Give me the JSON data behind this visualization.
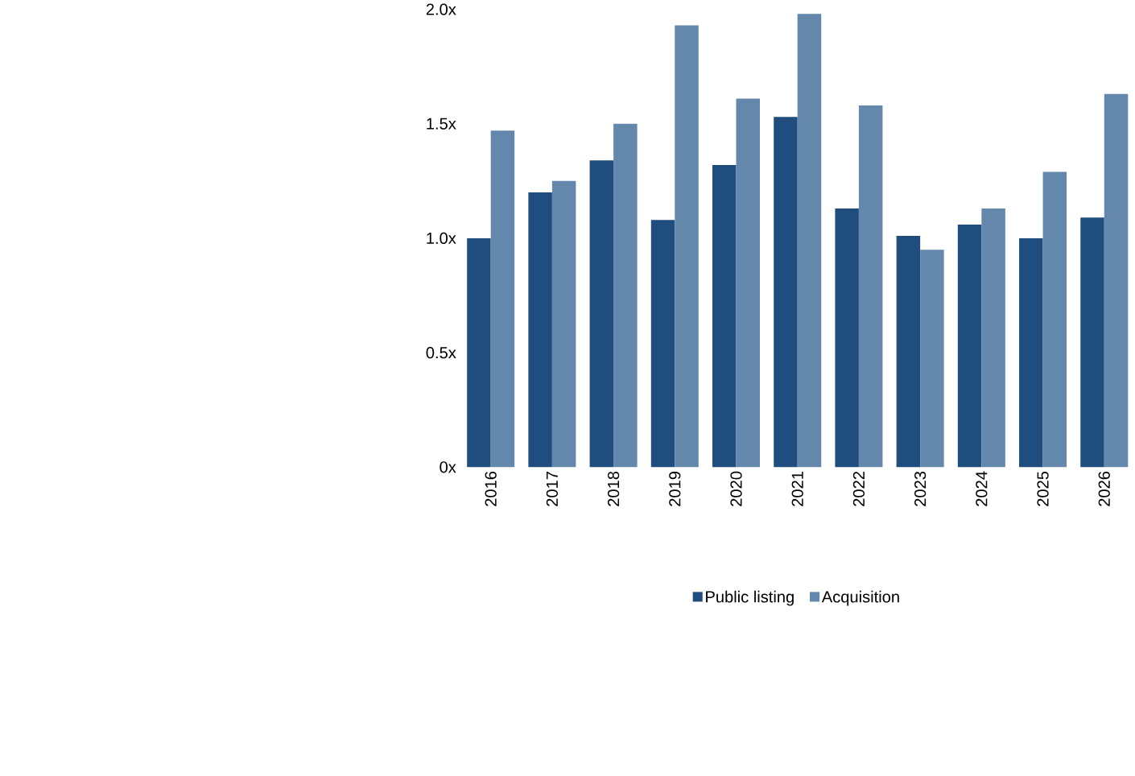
{
  "chart_data": {
    "type": "bar",
    "categories": [
      "2016",
      "2017",
      "2018",
      "2019",
      "2020",
      "2021",
      "2022",
      "2023",
      "2024",
      "2025",
      "2026"
    ],
    "series": [
      {
        "name": "Public listing",
        "color": "#1f4e7e",
        "values": [
          1.0,
          1.2,
          1.34,
          1.08,
          1.32,
          1.53,
          1.13,
          1.01,
          1.06,
          1.0,
          1.09
        ]
      },
      {
        "name": "Acquisition",
        "color": "#6388ab",
        "values": [
          1.47,
          1.25,
          1.5,
          1.93,
          1.61,
          1.98,
          1.58,
          0.95,
          1.13,
          1.29,
          1.63
        ]
      }
    ],
    "ylim": [
      0,
      2.0
    ],
    "yticks": [
      {
        "value": 0,
        "label": "0x"
      },
      {
        "value": 0.5,
        "label": "0.5x"
      },
      {
        "value": 1.0,
        "label": "1.0x"
      },
      {
        "value": 1.5,
        "label": "1.5x"
      },
      {
        "value": 2.0,
        "label": "2.0x"
      }
    ],
    "legend": "bottom"
  }
}
